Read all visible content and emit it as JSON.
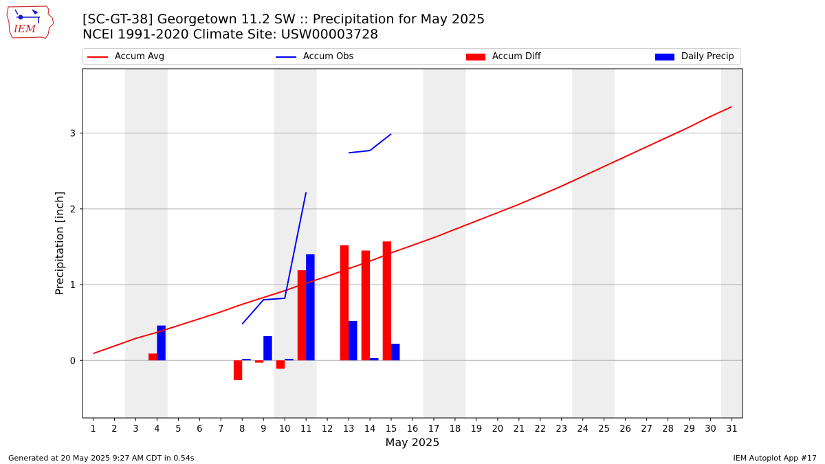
{
  "header": {
    "title_line1": "[SC-GT-38] Georgetown 11.2 SW :: Precipitation for May 2025",
    "title_line2": "NCEI 1991-2020 Climate Site: USW00003728"
  },
  "logo": {
    "text": "IEM",
    "icon": "iem-iowa-logo"
  },
  "footer": {
    "generated": "Generated at 20 May 2025 9:27 AM CDT in 0.54s",
    "app": "IEM Autoplot App #17"
  },
  "colors": {
    "accum_avg": "#ff0000",
    "accum_obs": "#0000ff",
    "accum_diff": "#ff0000",
    "daily_precip": "#0000ff",
    "weekend": "#eeeeee",
    "grid": "#b0b0b0"
  },
  "chart_data": {
    "type": "bar",
    "xlabel": "May 2025",
    "ylabel": "Precipitation [inch]",
    "xlim": [
      0.5,
      31.5
    ],
    "ylim": [
      -0.76,
      3.85
    ],
    "yticks": [
      0,
      1,
      2,
      3
    ],
    "grid": "horizontal",
    "legend_position": "top",
    "x": [
      1,
      2,
      3,
      4,
      5,
      6,
      7,
      8,
      9,
      10,
      11,
      12,
      13,
      14,
      15,
      16,
      17,
      18,
      19,
      20,
      21,
      22,
      23,
      24,
      25,
      26,
      27,
      28,
      29,
      30,
      31
    ],
    "weekend_spans": [
      [
        2.5,
        4.5
      ],
      [
        9.5,
        11.5
      ],
      [
        16.5,
        18.5
      ],
      [
        23.5,
        25.5
      ],
      [
        30.5,
        31.5
      ]
    ],
    "series": [
      {
        "name": "Accum Avg",
        "kind": "line",
        "color": "#ff0000",
        "values": [
          0.09,
          0.19,
          0.29,
          0.37,
          0.46,
          0.55,
          0.64,
          0.74,
          0.83,
          0.92,
          1.02,
          1.11,
          1.21,
          1.31,
          1.42,
          1.52,
          1.62,
          1.73,
          1.84,
          1.95,
          2.06,
          2.18,
          2.3,
          2.43,
          2.56,
          2.69,
          2.82,
          2.95,
          3.08,
          3.22,
          3.35
        ]
      },
      {
        "name": "Accum Obs",
        "kind": "line",
        "color": "#0000ff",
        "values": [
          null,
          null,
          null,
          null,
          null,
          null,
          null,
          0.48,
          0.8,
          0.82,
          2.22,
          null,
          2.74,
          2.77,
          2.99,
          null,
          null,
          null,
          null,
          null,
          null,
          null,
          null,
          null,
          null,
          null,
          null,
          null,
          null,
          null,
          null
        ]
      },
      {
        "name": "Accum Diff",
        "kind": "bar",
        "color": "#ff0000",
        "values": [
          null,
          null,
          null,
          0.09,
          null,
          null,
          null,
          -0.26,
          -0.03,
          -0.11,
          1.19,
          null,
          1.52,
          1.45,
          1.57,
          null,
          null,
          null,
          null,
          null,
          null,
          null,
          null,
          null,
          null,
          null,
          null,
          null,
          null,
          null,
          null
        ]
      },
      {
        "name": "Daily Precip",
        "kind": "bar",
        "color": "#0000ff",
        "values": [
          null,
          null,
          null,
          0.46,
          null,
          null,
          null,
          0.02,
          0.32,
          0.02,
          1.4,
          null,
          0.52,
          0.03,
          0.22,
          null,
          null,
          null,
          null,
          null,
          null,
          null,
          null,
          null,
          null,
          null,
          null,
          null,
          null,
          null,
          null
        ]
      }
    ]
  }
}
